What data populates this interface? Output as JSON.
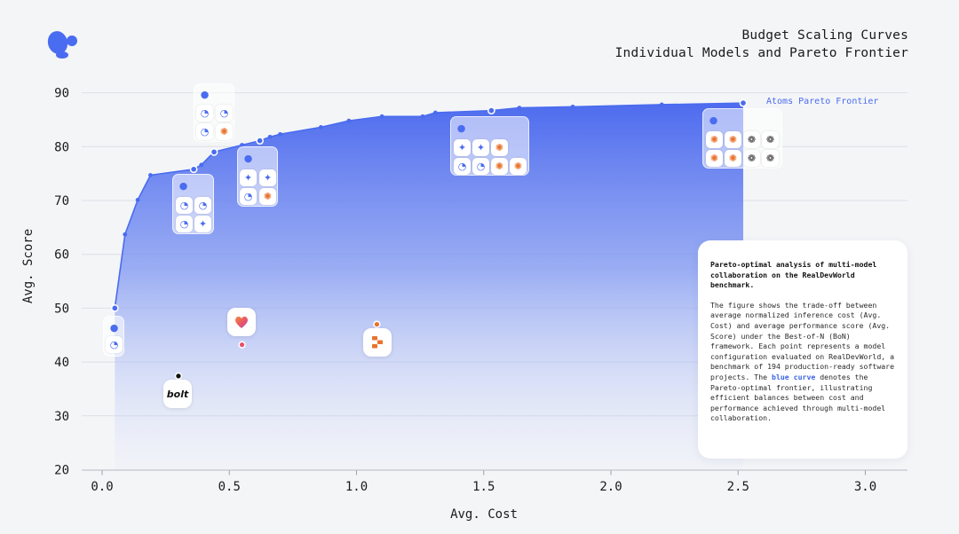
{
  "title_line1": "Budget Scaling Curves",
  "title_line2": "Individual Models and Pareto Frontier",
  "chart_data": {
    "type": "area",
    "title": "Budget Scaling Curves",
    "subtitle": "Individual Models and Pareto Frontier",
    "xlabel": "Avg. Cost",
    "ylabel": "Avg. Score",
    "xlim": [
      -0.05,
      3.15
    ],
    "ylim": [
      20,
      90
    ],
    "xticks": [
      0.0,
      0.5,
      1.0,
      1.5,
      2.0,
      2.5,
      3.0
    ],
    "yticks": [
      20,
      30,
      40,
      50,
      60,
      70,
      80,
      90
    ],
    "xtick_labels": [
      "0.0",
      "0.5",
      "1.0",
      "1.5",
      "2.0",
      "2.5",
      "3.0"
    ],
    "ytick_labels": [
      "20",
      "30",
      "40",
      "50",
      "60",
      "70",
      "80",
      "90"
    ],
    "grid": "horizontal",
    "series": [
      {
        "name": "Atoms Pareto Frontier",
        "x": [
          0.05,
          0.09,
          0.14,
          0.19,
          0.36,
          0.39,
          0.44,
          0.55,
          0.62,
          0.66,
          0.7,
          0.86,
          0.97,
          1.1,
          1.26,
          1.31,
          1.53,
          1.64,
          1.85,
          2.2,
          2.52
        ],
        "y": [
          50.0,
          63.7,
          70.1,
          74.7,
          75.8,
          76.6,
          79.0,
          80.3,
          81.1,
          81.8,
          82.3,
          83.6,
          84.8,
          85.6,
          85.6,
          86.3,
          86.7,
          87.2,
          87.4,
          87.8,
          88.1
        ]
      }
    ],
    "highlight_points": [
      {
        "x": 0.05,
        "y": 50.0
      },
      {
        "x": 0.36,
        "y": 75.8
      },
      {
        "x": 0.44,
        "y": 79.0
      },
      {
        "x": 0.62,
        "y": 81.1
      },
      {
        "x": 1.53,
        "y": 86.7
      },
      {
        "x": 2.52,
        "y": 88.1
      }
    ],
    "other_points": [
      {
        "name": "bolt",
        "x": 0.3,
        "y": 37.4,
        "color": "#111111"
      },
      {
        "name": "lovable",
        "x": 0.55,
        "y": 43.2,
        "color": "#e8516b"
      },
      {
        "name": "replit",
        "x": 1.08,
        "y": 47.0,
        "color": "#e8732e"
      }
    ],
    "series_label": "Atoms Pareto Frontier"
  },
  "labels": {
    "bolt": "bolt"
  },
  "info": {
    "heading": "Pareto-optimal analysis of multi-model collaboration on the RealDevWorld benchmark.",
    "body_before": "The figure shows the trade-off between average normalized inference cost (Avg. Cost) and average performance score (Avg. Score) under the Best-of-N (BoN) framework. Each point represents a model configuration evaluated on RealDevWorld, a benchmark of 194 production-ready software projects. The ",
    "highlight": "blue curve",
    "body_after": " denotes the Pareto-optimal frontier, illustrating efficient balances between cost and performance achieved through multi-model collaboration."
  },
  "colors": {
    "frontier": "#4a6cf0",
    "accent": "#3a63e6",
    "orange": "#e8732e"
  }
}
